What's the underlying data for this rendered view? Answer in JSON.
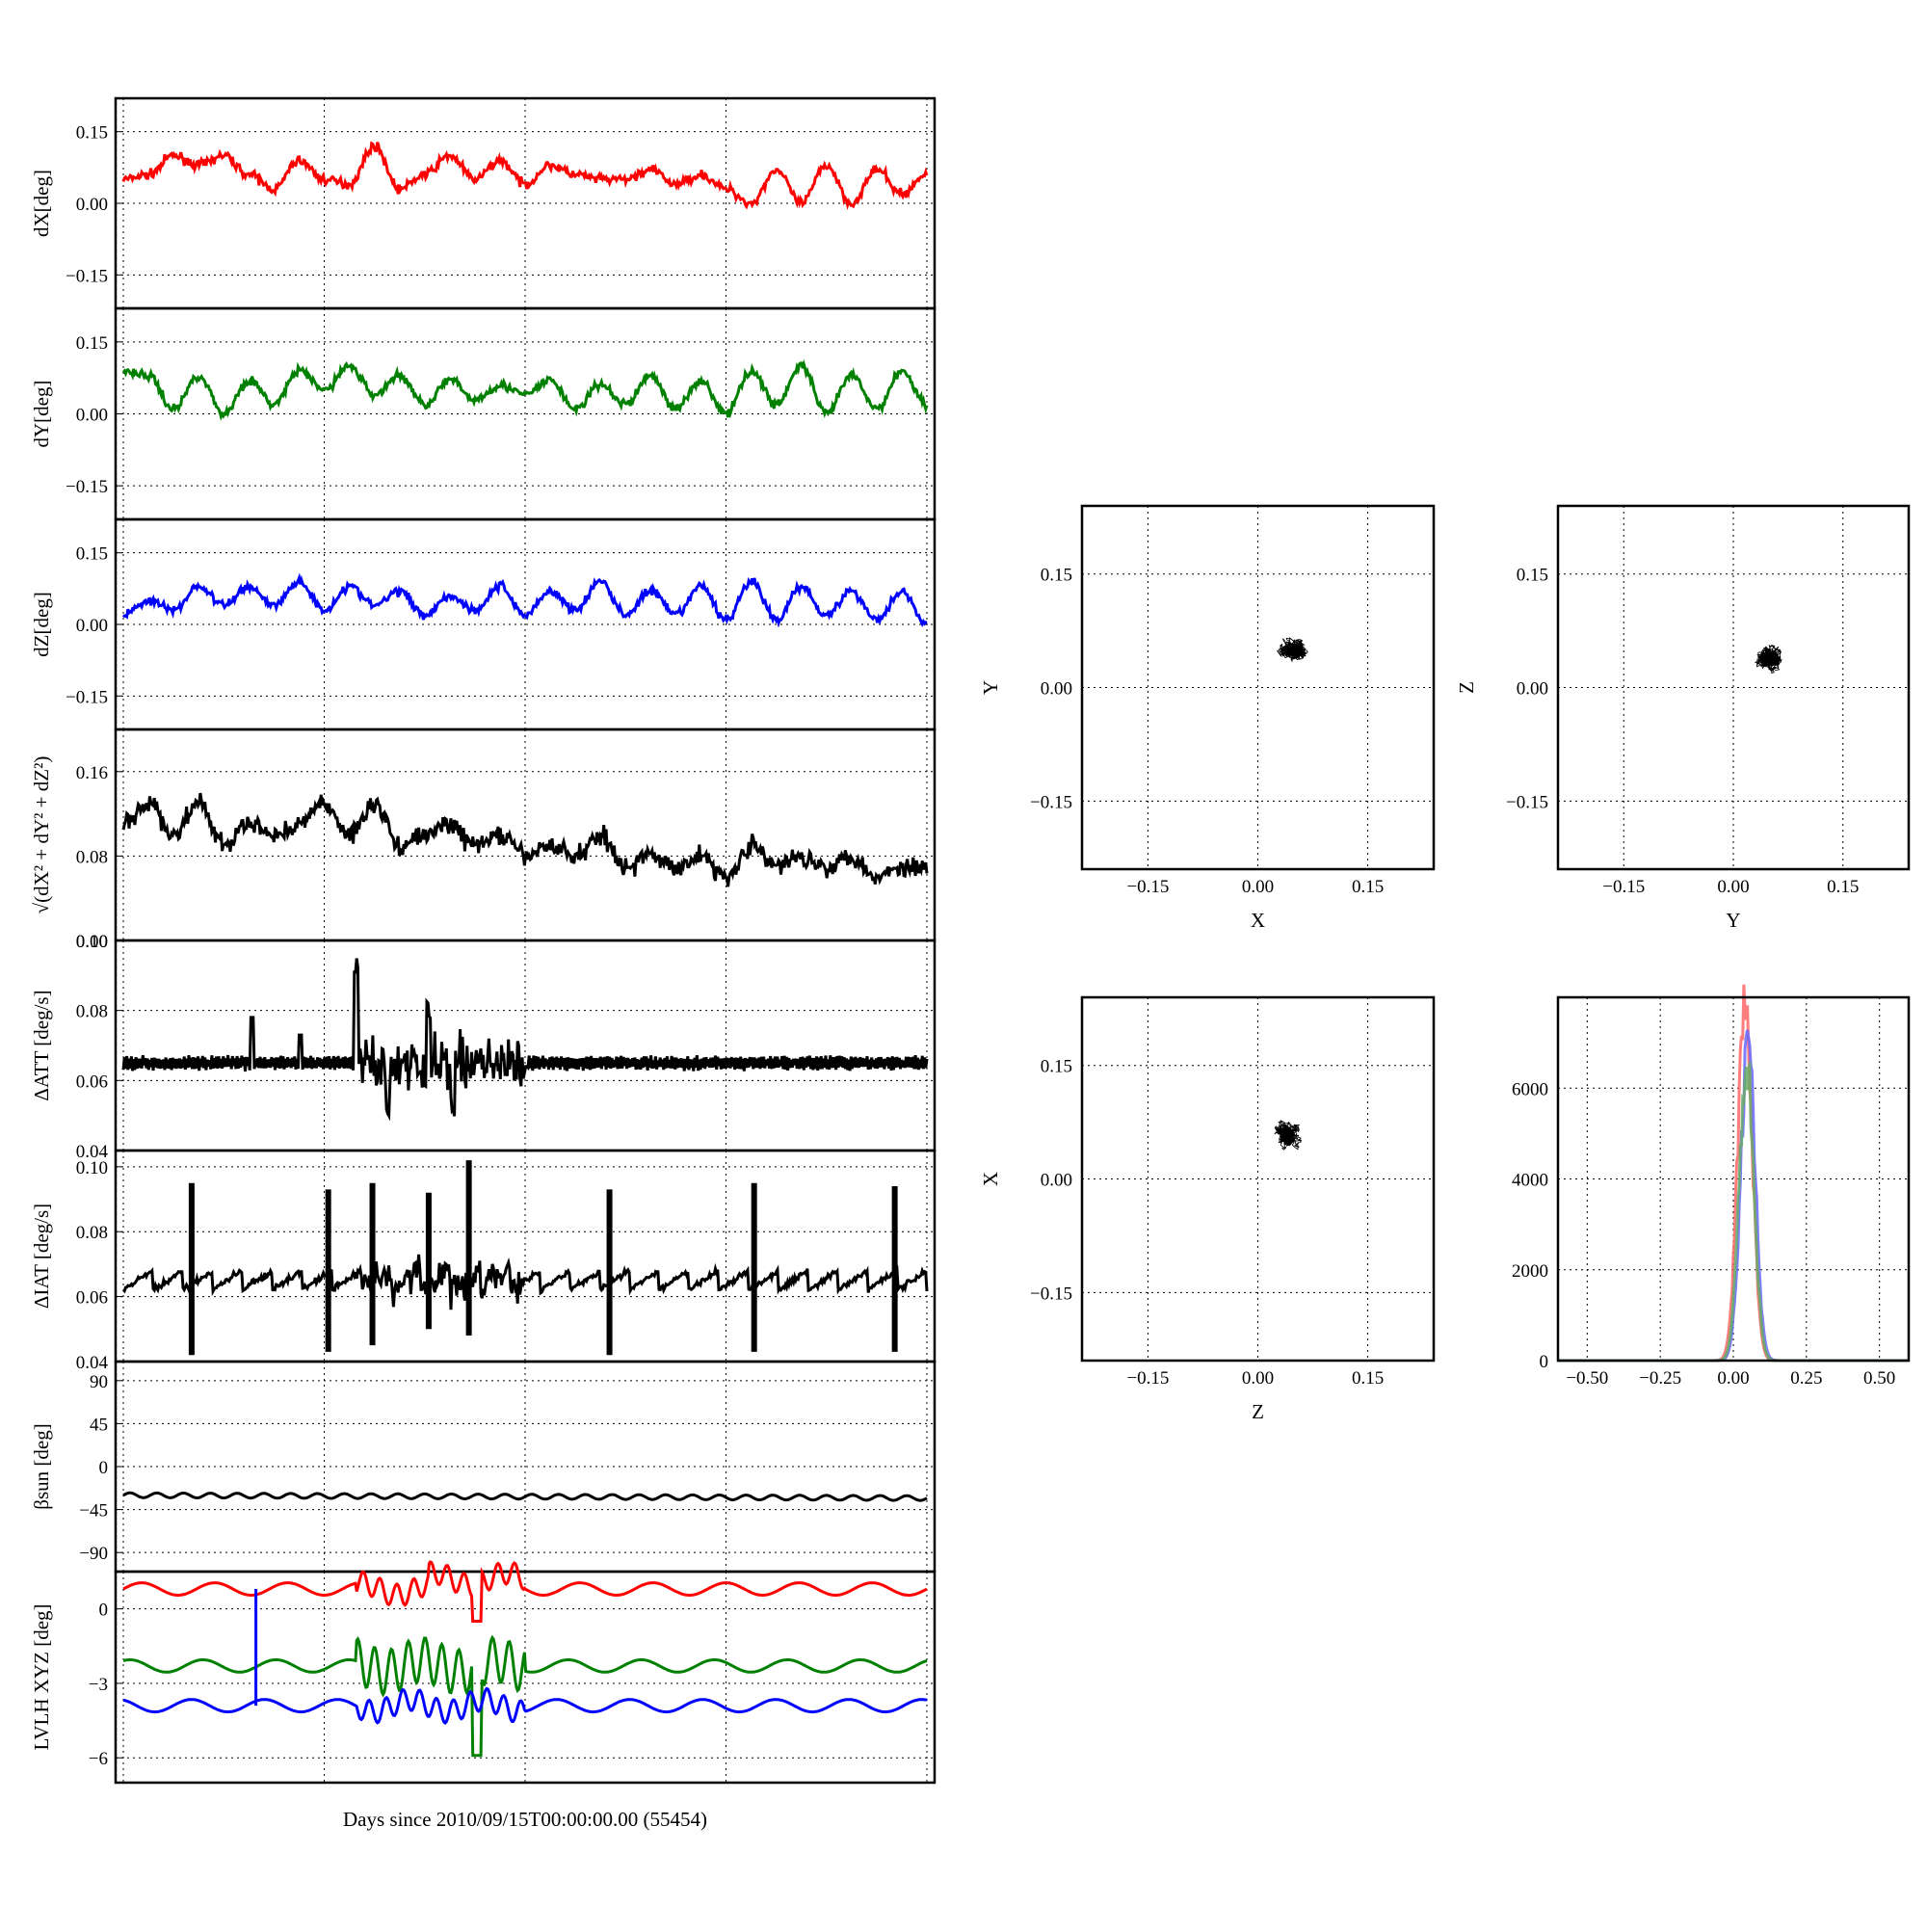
{
  "figure": {
    "xlabel": "Days since 2010/09/15T00:00:00.00 (55454)"
  },
  "chart_data": [
    {
      "id": "dx",
      "type": "line",
      "ylabel": "dX[deg]",
      "ylim": [
        -0.22,
        0.22
      ],
      "yticks": [
        "0.15",
        "0.00",
        "−0.15"
      ],
      "ytick_values": [
        0.15,
        0.0,
        -0.15
      ],
      "grid": true,
      "series": [
        {
          "color": "#ff0000",
          "level": 0.06,
          "anchors": [
            0.05,
            0.06,
            0.1,
            0.08,
            0.1,
            0.06,
            0.03,
            0.09,
            0.05,
            0.04,
            0.12,
            0.03,
            0.06,
            0.1,
            0.05,
            0.09,
            0.04,
            0.08,
            0.06,
            0.05,
            0.05,
            0.07,
            0.04,
            0.06,
            0.03,
            0.0,
            0.07,
            0.0,
            0.08,
            0.0,
            0.07,
            0.02,
            0.06
          ]
        }
      ]
    },
    {
      "id": "dy",
      "type": "line",
      "ylabel": "dY[deg]",
      "ylim": [
        -0.22,
        0.22
      ],
      "yticks": [
        "0.15",
        "0.00",
        "−0.15"
      ],
      "ytick_values": [
        0.15,
        0.0,
        -0.15
      ],
      "grid": true,
      "series": [
        {
          "color": "#008000",
          "level": 0.05,
          "anchors": [
            0.09,
            0.08,
            0.01,
            0.08,
            0.0,
            0.07,
            0.02,
            0.09,
            0.05,
            0.1,
            0.04,
            0.08,
            0.02,
            0.07,
            0.03,
            0.06,
            0.04,
            0.07,
            0.01,
            0.06,
            0.02,
            0.08,
            0.01,
            0.07,
            0.0,
            0.09,
            0.02,
            0.1,
            0.0,
            0.08,
            0.01,
            0.09,
            0.02
          ]
        }
      ]
    },
    {
      "id": "dz",
      "type": "line",
      "ylabel": "dZ[deg]",
      "ylim": [
        -0.22,
        0.22
      ],
      "yticks": [
        "0.15",
        "0.00",
        "−0.15"
      ],
      "ytick_values": [
        0.15,
        0.0,
        -0.15
      ],
      "grid": true,
      "series": [
        {
          "color": "#0000ff",
          "level": 0.04,
          "anchors": [
            0.02,
            0.05,
            0.03,
            0.08,
            0.04,
            0.08,
            0.04,
            0.09,
            0.03,
            0.08,
            0.04,
            0.07,
            0.02,
            0.06,
            0.03,
            0.08,
            0.02,
            0.07,
            0.03,
            0.09,
            0.02,
            0.07,
            0.02,
            0.08,
            0.01,
            0.09,
            0.01,
            0.08,
            0.02,
            0.07,
            0.01,
            0.07,
            0.0
          ]
        }
      ]
    },
    {
      "id": "dr",
      "type": "line",
      "ylabel": "√(dX² + dY² + dZ²)",
      "ylim": [
        0.0,
        0.2
      ],
      "yticks": [
        "0.16",
        "0.08",
        "0.00"
      ],
      "ytick_values": [
        0.16,
        0.08,
        0.0
      ],
      "grid": true,
      "series": [
        {
          "color": "#000000",
          "level": 0.09,
          "anchors": [
            0.11,
            0.13,
            0.1,
            0.13,
            0.09,
            0.11,
            0.1,
            0.11,
            0.13,
            0.1,
            0.13,
            0.09,
            0.1,
            0.11,
            0.09,
            0.1,
            0.08,
            0.09,
            0.08,
            0.1,
            0.07,
            0.08,
            0.07,
            0.08,
            0.06,
            0.09,
            0.07,
            0.08,
            0.07,
            0.08,
            0.06,
            0.07,
            0.07
          ]
        }
      ]
    },
    {
      "id": "datt",
      "type": "line",
      "ylabel": "ΔATT [deg/s]",
      "ylim": [
        0.04,
        0.1
      ],
      "yticks": [
        "0.10",
        "0.08",
        "0.06",
        "0.04"
      ],
      "ytick_values": [
        0.1,
        0.08,
        0.06,
        0.04
      ],
      "grid": true,
      "series": [
        {
          "color": "#000000",
          "level": 0.065,
          "spikes": [
            [
              0.16,
              0.078
            ],
            [
              0.22,
              0.073
            ],
            [
              0.29,
              0.091
            ],
            [
              0.33,
              0.055
            ],
            [
              0.38,
              0.079
            ],
            [
              0.41,
              0.05
            ],
            [
              0.44,
              0.068
            ],
            [
              0.5,
              0.064
            ]
          ]
        }
      ]
    },
    {
      "id": "diat",
      "type": "line",
      "ylabel": "ΔIAT [deg/s]",
      "ylim": [
        0.04,
        0.105
      ],
      "yticks": [
        "0.10",
        "0.08",
        "0.06",
        "0.04"
      ],
      "ytick_values": [
        0.1,
        0.08,
        0.06,
        0.04
      ],
      "grid": true,
      "series": [
        {
          "color": "#000000",
          "level": 0.065,
          "bars": [
            [
              0.085,
              0.095,
              0.042
            ],
            [
              0.255,
              0.093,
              0.043
            ],
            [
              0.31,
              0.095,
              0.045
            ],
            [
              0.38,
              0.092,
              0.05
            ],
            [
              0.43,
              0.102,
              0.048
            ],
            [
              0.605,
              0.093,
              0.042
            ],
            [
              0.785,
              0.095,
              0.043
            ],
            [
              0.96,
              0.094,
              0.043
            ]
          ]
        }
      ]
    },
    {
      "id": "beta",
      "type": "line",
      "ylabel": "βsun [deg]",
      "ylim": [
        -110,
        110
      ],
      "yticks": [
        "90",
        "45",
        "0",
        "−45",
        "−90"
      ],
      "ytick_values": [
        90,
        45,
        0,
        -45,
        -90
      ],
      "grid": true,
      "series": [
        {
          "color": "#000000",
          "level": -30
        }
      ]
    },
    {
      "id": "lvlh",
      "type": "line",
      "ylabel": "LVLH XYZ [deg]",
      "ylim": [
        -7,
        1.5
      ],
      "yticks": [
        "0",
        "−3",
        "−6"
      ],
      "ytick_values": [
        0,
        -3,
        -6
      ],
      "grid": true,
      "series": [
        {
          "color": "#ff0000",
          "level": 0.8
        },
        {
          "color": "#008000",
          "level": -2.3
        },
        {
          "color": "#0000ff",
          "level": -3.9
        }
      ]
    },
    {
      "id": "xy",
      "type": "scatter",
      "xlabel": "X",
      "ylabel": "Y",
      "xlim": [
        -0.24,
        0.24
      ],
      "ylim": [
        -0.24,
        0.24
      ],
      "xticks": [
        "−0.15",
        "0.00",
        "0.15"
      ],
      "yticks": [
        "0.15",
        "0.00",
        "−0.15"
      ],
      "center": [
        0.05,
        0.05
      ],
      "spread": [
        0.03,
        0.03
      ],
      "grid": true
    },
    {
      "id": "yz",
      "type": "scatter",
      "xlabel": "Y",
      "ylabel": "Z",
      "xlim": [
        -0.24,
        0.24
      ],
      "ylim": [
        -0.24,
        0.24
      ],
      "xticks": [
        "−0.15",
        "0.00",
        "0.15"
      ],
      "yticks": [
        "0.15",
        "0.00",
        "−0.15"
      ],
      "center": [
        0.05,
        0.04
      ],
      "spread": [
        0.03,
        0.025
      ],
      "grid": true
    },
    {
      "id": "zx",
      "type": "scatter",
      "xlabel": "Z",
      "ylabel": "X",
      "xlim": [
        -0.24,
        0.24
      ],
      "ylim": [
        -0.24,
        0.24
      ],
      "xticks": [
        "−0.15",
        "0.00",
        "0.15"
      ],
      "yticks": [
        "0.15",
        "0.00",
        "−0.15"
      ],
      "center": [
        0.04,
        0.06
      ],
      "spread": [
        0.025,
        0.03
      ],
      "grid": true
    },
    {
      "id": "hist",
      "type": "line",
      "xlabel": "",
      "ylabel": "",
      "xlim": [
        -0.6,
        0.6
      ],
      "ylim": [
        0,
        8000
      ],
      "xticks": [
        "−0.50",
        "−0.25",
        "0.00",
        "0.25",
        "0.50"
      ],
      "yticks": [
        "6000",
        "4000",
        "2000",
        "0"
      ],
      "ytick_values": [
        6000,
        4000,
        2000,
        0
      ],
      "grid": true,
      "series": [
        {
          "color": "#ff6666",
          "peak_x": 0.04,
          "peak_y": 7800
        },
        {
          "color": "#6666ff",
          "peak_x": 0.05,
          "peak_y": 6900
        },
        {
          "color": "#66aa66",
          "peak_x": 0.045,
          "peak_y": 6600
        }
      ]
    }
  ]
}
